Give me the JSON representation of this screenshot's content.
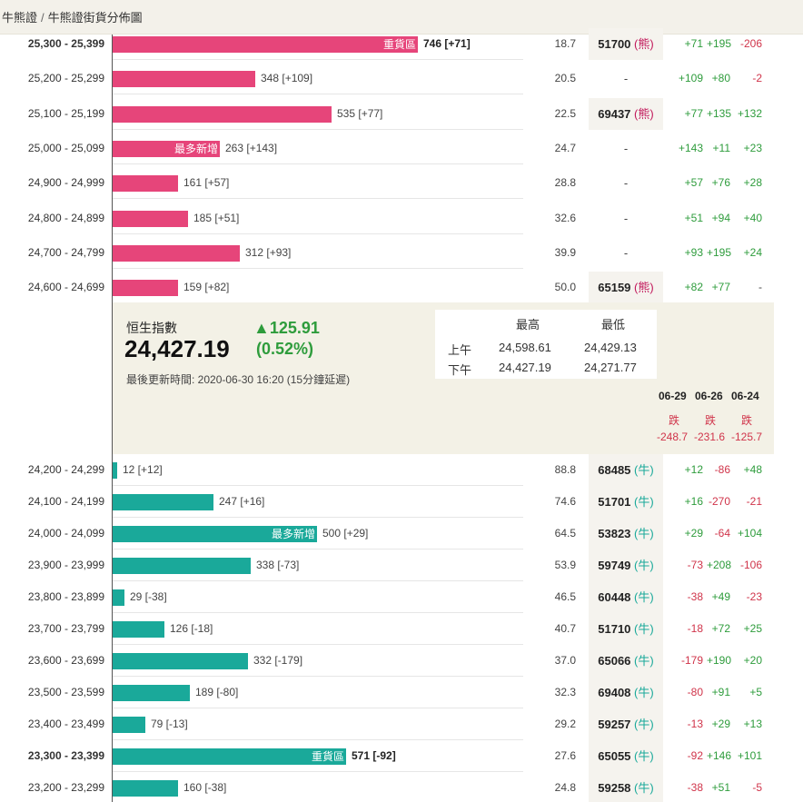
{
  "breadcrumb": {
    "home": "牛熊證",
    "separator": "/",
    "current": "牛熊證街貨分佈圖"
  },
  "colors": {
    "bear": "#e6457a",
    "bull": "#1aa99a",
    "positive": "#2e9c3c",
    "negative": "#d0344a"
  },
  "bear_rows": [
    {
      "range": "25,300 - 25,399",
      "count": "746 [+71]",
      "count_value": 746,
      "tag": "重貨區",
      "pct": "18.7",
      "code": "51700",
      "code_tag": "(熊)",
      "c1": "+71",
      "c2": "+195",
      "c3": "-206",
      "bold": true
    },
    {
      "range": "25,200 - 25,299",
      "count": "348 [+109]",
      "count_value": 348,
      "tag": "",
      "pct": "20.5",
      "code": "-",
      "code_tag": "",
      "c1": "+109",
      "c2": "+80",
      "c3": "-2",
      "bold": false
    },
    {
      "range": "25,100 - 25,199",
      "count": "535 [+77]",
      "count_value": 535,
      "tag": "",
      "pct": "22.5",
      "code": "69437",
      "code_tag": "(熊)",
      "c1": "+77",
      "c2": "+135",
      "c3": "+132",
      "bold": false
    },
    {
      "range": "25,000 - 25,099",
      "count": "263 [+143]",
      "count_value": 263,
      "tag": "最多新增",
      "pct": "24.7",
      "code": "-",
      "code_tag": "",
      "c1": "+143",
      "c2": "+11",
      "c3": "+23",
      "bold": false
    },
    {
      "range": "24,900 - 24,999",
      "count": "161 [+57]",
      "count_value": 161,
      "tag": "",
      "pct": "28.8",
      "code": "-",
      "code_tag": "",
      "c1": "+57",
      "c2": "+76",
      "c3": "+28",
      "bold": false
    },
    {
      "range": "24,800 - 24,899",
      "count": "185 [+51]",
      "count_value": 185,
      "tag": "",
      "pct": "32.6",
      "code": "-",
      "code_tag": "",
      "c1": "+51",
      "c2": "+94",
      "c3": "+40",
      "bold": false
    },
    {
      "range": "24,700 - 24,799",
      "count": "312 [+93]",
      "count_value": 312,
      "tag": "",
      "pct": "39.9",
      "code": "-",
      "code_tag": "",
      "c1": "+93",
      "c2": "+195",
      "c3": "+24",
      "bold": false
    },
    {
      "range": "24,600 - 24,699",
      "count": "159 [+82]",
      "count_value": 159,
      "tag": "",
      "pct": "50.0",
      "code": "65159",
      "code_tag": "(熊)",
      "c1": "+82",
      "c2": "+77",
      "c3": "-",
      "bold": false
    }
  ],
  "index": {
    "name": "恒生指數",
    "value": "24,427.19",
    "change": "▲125.91",
    "change_pct": "(0.52%)",
    "updated": "最後更新時間: 2020-06-30 16:20 (15分鐘延遲)",
    "table": {
      "col_high": "最高",
      "col_low": "最低",
      "rows": [
        {
          "label": "上午",
          "high": "24,598.61",
          "low": "24,429.13"
        },
        {
          "label": "下午",
          "high": "24,427.19",
          "low": "24,271.77"
        }
      ]
    },
    "history": [
      {
        "date": "06-29",
        "dir": "跌",
        "chg": "-248.7"
      },
      {
        "date": "06-26",
        "dir": "跌",
        "chg": "-231.6"
      },
      {
        "date": "06-24",
        "dir": "跌",
        "chg": "-125.7"
      }
    ]
  },
  "bull_rows": [
    {
      "range": "24,200 - 24,299",
      "count": "12 [+12]",
      "count_value": 12,
      "tag": "",
      "pct": "88.8",
      "code": "68485",
      "code_tag": "(牛)",
      "c1": "+12",
      "c2": "-86",
      "c3": "+48",
      "bold": false
    },
    {
      "range": "24,100 - 24,199",
      "count": "247 [+16]",
      "count_value": 247,
      "tag": "",
      "pct": "74.6",
      "code": "51701",
      "code_tag": "(牛)",
      "c1": "+16",
      "c2": "-270",
      "c3": "-21",
      "bold": false
    },
    {
      "range": "24,000 - 24,099",
      "count": "500 [+29]",
      "count_value": 500,
      "tag": "最多新增",
      "pct": "64.5",
      "code": "53823",
      "code_tag": "(牛)",
      "c1": "+29",
      "c2": "-64",
      "c3": "+104",
      "bold": false
    },
    {
      "range": "23,900 - 23,999",
      "count": "338 [-73]",
      "count_value": 338,
      "tag": "",
      "pct": "53.9",
      "code": "59749",
      "code_tag": "(牛)",
      "c1": "-73",
      "c2": "+208",
      "c3": "-106",
      "bold": false
    },
    {
      "range": "23,800 - 23,899",
      "count": "29 [-38]",
      "count_value": 29,
      "tag": "",
      "pct": "46.5",
      "code": "60448",
      "code_tag": "(牛)",
      "c1": "-38",
      "c2": "+49",
      "c3": "-23",
      "bold": false
    },
    {
      "range": "23,700 - 23,799",
      "count": "126 [-18]",
      "count_value": 126,
      "tag": "",
      "pct": "40.7",
      "code": "51710",
      "code_tag": "(牛)",
      "c1": "-18",
      "c2": "+72",
      "c3": "+25",
      "bold": false
    },
    {
      "range": "23,600 - 23,699",
      "count": "332 [-179]",
      "count_value": 332,
      "tag": "",
      "pct": "37.0",
      "code": "65066",
      "code_tag": "(牛)",
      "c1": "-179",
      "c2": "+190",
      "c3": "+20",
      "bold": false
    },
    {
      "range": "23,500 - 23,599",
      "count": "189 [-80]",
      "count_value": 189,
      "tag": "",
      "pct": "32.3",
      "code": "69408",
      "code_tag": "(牛)",
      "c1": "-80",
      "c2": "+91",
      "c3": "+5",
      "bold": false
    },
    {
      "range": "23,400 - 23,499",
      "count": "79 [-13]",
      "count_value": 79,
      "tag": "",
      "pct": "29.2",
      "code": "59257",
      "code_tag": "(牛)",
      "c1": "-13",
      "c2": "+29",
      "c3": "+13",
      "bold": false
    },
    {
      "range": "23,300 - 23,399",
      "count": "571 [-92]",
      "count_value": 571,
      "tag": "重貨區",
      "pct": "27.6",
      "code": "65055",
      "code_tag": "(牛)",
      "c1": "-92",
      "c2": "+146",
      "c3": "+101",
      "bold": true
    },
    {
      "range": "23,200 - 23,299",
      "count": "160 [-38]",
      "count_value": 160,
      "tag": "",
      "pct": "24.8",
      "code": "59258",
      "code_tag": "(牛)",
      "c1": "-38",
      "c2": "+51",
      "c3": "-5",
      "bold": false
    }
  ]
}
